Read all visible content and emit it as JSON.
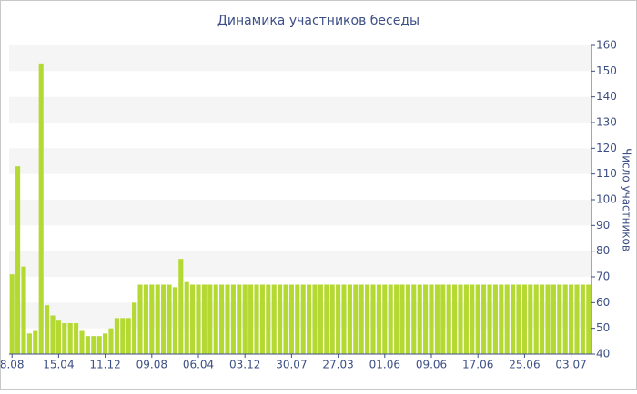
{
  "chart_data": {
    "type": "bar",
    "title": "Динамика участников беседы",
    "y_label": "Число участников",
    "categories": [
      "8.08",
      null,
      null,
      null,
      null,
      null,
      null,
      null,
      "15.04",
      null,
      null,
      null,
      null,
      null,
      null,
      null,
      "11.12",
      null,
      null,
      null,
      null,
      null,
      null,
      null,
      "09.08",
      null,
      null,
      null,
      null,
      null,
      null,
      null,
      "06.04",
      null,
      null,
      null,
      null,
      null,
      null,
      null,
      "03.12",
      null,
      null,
      null,
      null,
      null,
      null,
      null,
      "30.07",
      null,
      null,
      null,
      null,
      null,
      null,
      null,
      "27.03",
      null,
      null,
      null,
      null,
      null,
      null,
      null,
      "01.06",
      null,
      null,
      null,
      null,
      null,
      null,
      null,
      "09.06",
      null,
      null,
      null,
      null,
      null,
      null,
      null,
      "17.06",
      null,
      null,
      null,
      null,
      null,
      null,
      null,
      "25.06",
      null,
      null,
      null,
      null,
      null,
      null,
      null,
      "03.07",
      null,
      null,
      null
    ],
    "values": [
      71,
      113,
      74,
      48,
      49,
      153,
      59,
      55,
      53,
      52,
      52,
      52,
      49,
      47,
      47,
      47,
      48,
      50,
      54,
      54,
      54,
      60,
      67,
      67,
      67,
      67,
      67,
      67,
      66,
      77,
      68,
      67,
      67,
      67,
      67,
      67,
      67,
      67,
      67,
      67,
      67,
      67,
      67,
      67,
      67,
      67,
      67,
      67,
      67,
      67,
      67,
      67,
      67,
      67,
      67,
      67,
      67,
      67,
      67,
      67,
      67,
      67,
      67,
      67,
      67,
      67,
      67,
      67,
      67,
      67,
      67,
      67,
      67,
      67,
      67,
      67,
      67,
      67,
      67,
      67,
      67,
      67,
      67,
      67,
      67,
      67,
      67,
      67,
      67,
      67,
      67,
      67,
      67,
      67,
      67,
      67,
      67,
      67,
      67,
      67
    ],
    "color": "#b5d933",
    "ylim": [
      40,
      160
    ],
    "yticks": [
      40,
      50,
      60,
      70,
      80,
      90,
      100,
      110,
      120,
      130,
      140,
      150,
      160
    ],
    "grid": "bands"
  }
}
